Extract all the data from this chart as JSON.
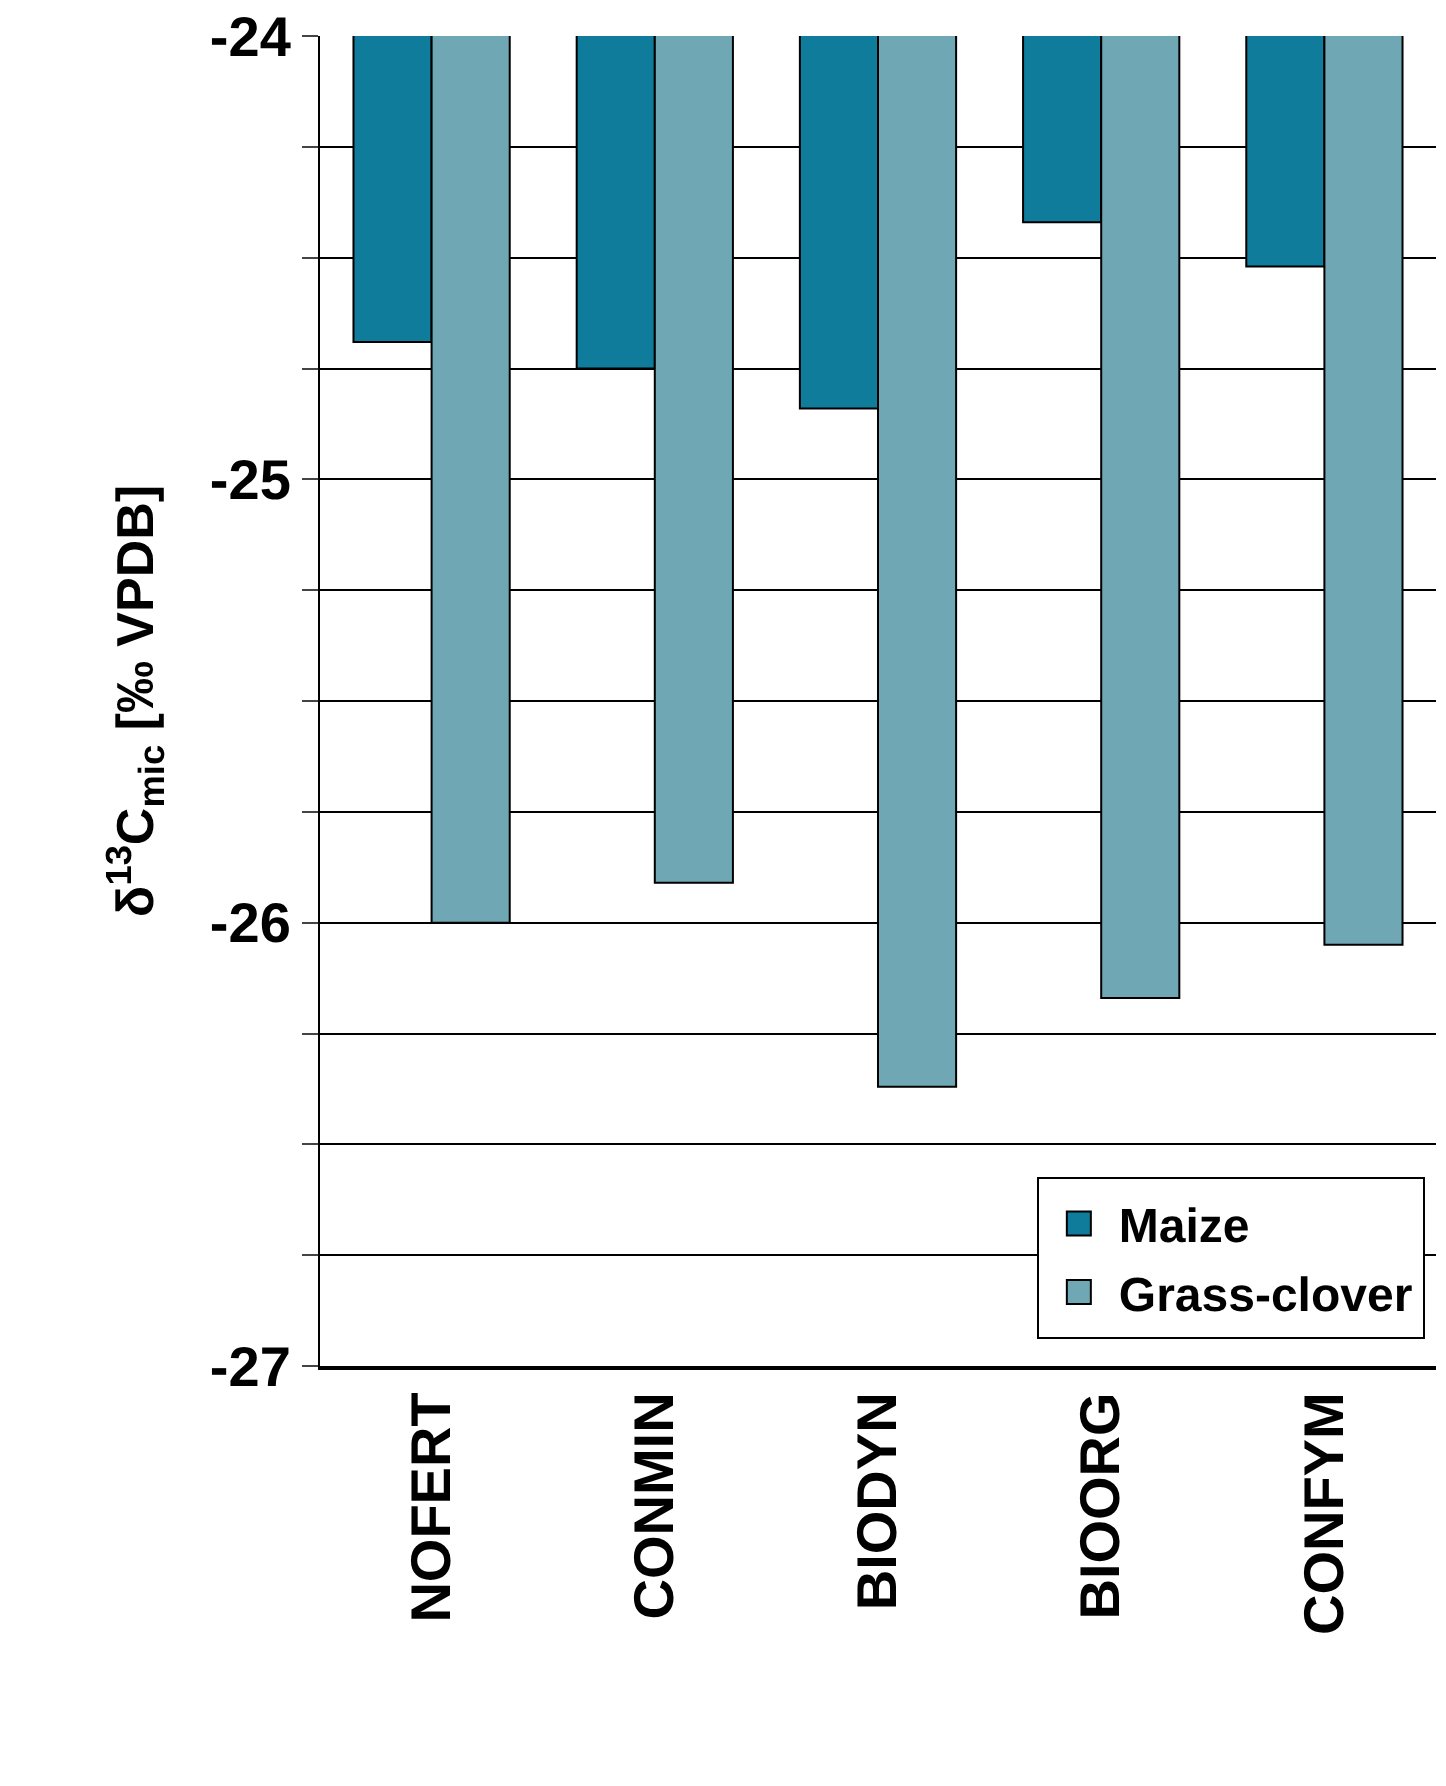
{
  "chart_data": {
    "type": "bar",
    "ylabel": "δ$^{13}$C$_{mic}$ [‰ VPDB]",
    "categories": [
      "NOFERT",
      "CONMIN",
      "BIODYN",
      "BIOORG",
      "CONFYM"
    ],
    "series": [
      {
        "name": "Maize",
        "color": "#0e7c9a",
        "values": [
          -24.69,
          -24.75,
          -24.84,
          -24.42,
          -24.52
        ]
      },
      {
        "name": "Grass-clover",
        "color": "#6fa8b4",
        "values": [
          -26.0,
          -25.91,
          -26.37,
          -26.17,
          -26.05
        ]
      }
    ],
    "ylim": [
      -27,
      -24
    ],
    "yticks": [
      -27,
      {
        "value": -26.75,
        "label": null
      },
      {
        "value": -26.5,
        "label": null
      },
      {
        "value": -26.25,
        "label": null
      },
      -26,
      {
        "value": -25.75,
        "label": null
      },
      {
        "value": -25.5,
        "label": null
      },
      {
        "value": -25.25,
        "label": null
      },
      -25,
      {
        "value": -24.75,
        "label": null
      },
      {
        "value": -24.5,
        "label": null
      },
      {
        "value": -24.25,
        "label": null
      },
      -24
    ],
    "grid": "y",
    "legend": "bottom right"
  }
}
